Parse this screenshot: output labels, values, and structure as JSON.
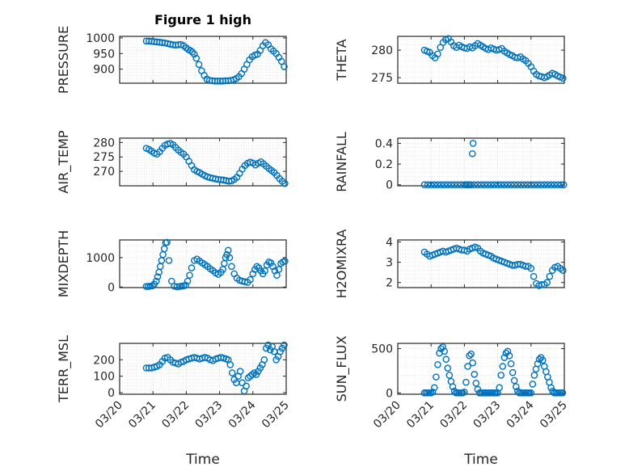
{
  "figure": {
    "title": "Figure 1 high",
    "xlabel": "Time"
  },
  "chart_data": [
    {
      "type": "scatter",
      "ylabel": "PRESSURE",
      "yticks": [
        900,
        950,
        1000
      ],
      "ylim": [
        855,
        1005
      ],
      "xlim": [
        0,
        5
      ],
      "xticks": [
        "03/20",
        "03/21",
        "03/22",
        "03/23",
        "03/24",
        "03/25"
      ],
      "grid": true,
      "color": "#0072BD",
      "x": [
        0.8,
        0.88,
        0.96,
        1.04,
        1.12,
        1.2,
        1.28,
        1.36,
        1.44,
        1.52,
        1.6,
        1.68,
        1.76,
        1.84,
        1.92,
        2.0,
        2.06,
        2.12,
        2.18,
        2.24,
        2.3,
        2.38,
        2.46,
        2.54,
        2.62,
        2.7,
        2.78,
        2.86,
        2.94,
        3.02,
        3.1,
        3.18,
        3.26,
        3.34,
        3.42,
        3.5,
        3.58,
        3.66,
        3.74,
        3.82,
        3.9,
        3.98,
        4.06,
        4.14,
        4.22,
        4.3,
        4.38,
        4.46,
        4.54,
        4.62,
        4.7,
        4.78,
        4.86,
        4.94
      ],
      "y": [
        990,
        990,
        989,
        988,
        987,
        986,
        985,
        984,
        982,
        980,
        978,
        977,
        978,
        979,
        975,
        968,
        963,
        960,
        955,
        948,
        935,
        915,
        895,
        880,
        868,
        864,
        863,
        862,
        862,
        862,
        862,
        863,
        863,
        864,
        866,
        870,
        876,
        886,
        900,
        915,
        930,
        940,
        945,
        948,
        960,
        975,
        985,
        978,
        965,
        958,
        950,
        938,
        925,
        908
      ]
    },
    {
      "type": "scatter",
      "ylabel": "THETA",
      "yticks": [
        275,
        280
      ],
      "ylim": [
        274,
        282.5
      ],
      "xlim": [
        0,
        5
      ],
      "xticks": [
        "03/20",
        "03/21",
        "03/22",
        "03/23",
        "03/24",
        "03/25"
      ],
      "grid": true,
      "color": "#0072BD",
      "x": [
        0.8,
        0.88,
        0.96,
        1.04,
        1.12,
        1.2,
        1.28,
        1.36,
        1.44,
        1.52,
        1.6,
        1.68,
        1.76,
        1.84,
        1.92,
        2.0,
        2.08,
        2.16,
        2.24,
        2.32,
        2.4,
        2.48,
        2.56,
        2.64,
        2.72,
        2.8,
        2.88,
        2.96,
        3.04,
        3.12,
        3.2,
        3.28,
        3.36,
        3.44,
        3.52,
        3.6,
        3.68,
        3.76,
        3.84,
        3.92,
        4.0,
        4.08,
        4.16,
        4.24,
        4.32,
        4.4,
        4.48,
        4.56,
        4.64,
        4.72,
        4.8,
        4.88,
        4.96
      ],
      "y": [
        280.0,
        279.8,
        279.6,
        279.0,
        278.6,
        279.3,
        280.5,
        281.4,
        281.9,
        282.1,
        281.5,
        280.8,
        280.5,
        280.9,
        280.6,
        280.4,
        280.3,
        280.6,
        280.4,
        280.8,
        281.2,
        280.9,
        280.6,
        280.3,
        280.1,
        280.4,
        280.2,
        280.0,
        280.1,
        280.3,
        279.8,
        279.5,
        279.2,
        279.0,
        278.7,
        278.6,
        278.8,
        278.4,
        278.1,
        277.6,
        277.0,
        276.2,
        275.6,
        275.3,
        275.2,
        275.0,
        275.2,
        275.5,
        275.8,
        275.6,
        275.3,
        275.1,
        274.9
      ]
    },
    {
      "type": "scatter",
      "ylabel": "AIR_TEMP",
      "yticks": [
        270,
        275,
        280
      ],
      "ylim": [
        265,
        281.5
      ],
      "xlim": [
        0,
        5
      ],
      "xticks": [
        "03/20",
        "03/21",
        "03/22",
        "03/23",
        "03/24",
        "03/25"
      ],
      "grid": true,
      "color": "#0072BD",
      "x": [
        0.8,
        0.88,
        0.96,
        1.04,
        1.12,
        1.2,
        1.28,
        1.36,
        1.44,
        1.52,
        1.6,
        1.68,
        1.76,
        1.84,
        1.92,
        2.0,
        2.08,
        2.16,
        2.24,
        2.32,
        2.4,
        2.48,
        2.56,
        2.64,
        2.72,
        2.8,
        2.88,
        2.96,
        3.04,
        3.12,
        3.2,
        3.28,
        3.36,
        3.44,
        3.52,
        3.6,
        3.68,
        3.76,
        3.84,
        3.92,
        4.0,
        4.08,
        4.16,
        4.24,
        4.32,
        4.4,
        4.48,
        4.56,
        4.64,
        4.72,
        4.8,
        4.88,
        4.96
      ],
      "y": [
        278.0,
        277.6,
        277.0,
        276.3,
        276.0,
        276.8,
        278.0,
        279.0,
        279.5,
        279.7,
        279.2,
        278.3,
        277.4,
        276.6,
        276.0,
        275.0,
        273.5,
        272.0,
        270.6,
        270.0,
        269.6,
        269.0,
        268.5,
        268.1,
        267.8,
        267.6,
        267.4,
        267.2,
        267.1,
        267.0,
        266.8,
        266.6,
        266.7,
        267.2,
        268.0,
        269.3,
        270.8,
        272.0,
        272.8,
        273.2,
        272.9,
        272.2,
        272.8,
        273.3,
        272.6,
        271.8,
        271.0,
        270.3,
        269.6,
        268.6,
        267.5,
        266.6,
        265.8
      ]
    },
    {
      "type": "scatter",
      "ylabel": "RAINFALL",
      "yticks": [
        0,
        0.2,
        0.4
      ],
      "ylim": [
        -0.01,
        0.45
      ],
      "xlim": [
        0,
        5
      ],
      "xticks": [
        "03/20",
        "03/21",
        "03/22",
        "03/23",
        "03/24",
        "03/25"
      ],
      "grid": true,
      "color": "#0072BD",
      "x": [
        0.8,
        0.9,
        1.0,
        1.1,
        1.2,
        1.3,
        1.4,
        1.5,
        1.6,
        1.7,
        1.8,
        1.9,
        2.0,
        2.05,
        2.1,
        2.15,
        2.2,
        2.24,
        2.26,
        2.3,
        2.4,
        2.5,
        2.6,
        2.7,
        2.8,
        2.9,
        3.0,
        3.1,
        3.2,
        3.3,
        3.4,
        3.5,
        3.6,
        3.7,
        3.8,
        3.9,
        4.0,
        4.1,
        4.2,
        4.3,
        4.4,
        4.5,
        4.6,
        4.7,
        4.8,
        4.9,
        4.98
      ],
      "y": [
        0,
        0,
        0,
        0,
        0,
        0,
        0,
        0,
        0,
        0,
        0,
        0,
        0,
        0,
        0,
        0,
        0,
        0.3,
        0.4,
        0,
        0,
        0,
        0,
        0,
        0,
        0,
        0,
        0,
        0,
        0,
        0,
        0,
        0,
        0,
        0,
        0,
        0,
        0,
        0,
        0,
        0,
        0,
        0,
        0,
        0,
        0,
        0
      ]
    },
    {
      "type": "scatter",
      "ylabel": "MIXDEPTH",
      "yticks": [
        0,
        1000
      ],
      "ylim": [
        -20,
        1600
      ],
      "xlim": [
        0,
        5
      ],
      "xticks": [
        "03/20",
        "03/21",
        "03/22",
        "03/23",
        "03/24",
        "03/25"
      ],
      "grid": true,
      "color": "#0072BD",
      "x": [
        0.8,
        0.86,
        0.92,
        0.98,
        1.04,
        1.1,
        1.14,
        1.18,
        1.22,
        1.26,
        1.3,
        1.34,
        1.38,
        1.42,
        1.48,
        1.56,
        1.64,
        1.72,
        1.8,
        1.86,
        1.92,
        1.98,
        2.04,
        2.1,
        2.16,
        2.24,
        2.32,
        2.4,
        2.48,
        2.56,
        2.64,
        2.72,
        2.8,
        2.88,
        2.96,
        3.04,
        3.1,
        3.14,
        3.18,
        3.22,
        3.26,
        3.3,
        3.36,
        3.44,
        3.52,
        3.6,
        3.68,
        3.76,
        3.84,
        3.92,
        4.0,
        4.06,
        4.12,
        4.18,
        4.24,
        4.3,
        4.36,
        4.42,
        4.48,
        4.54,
        4.6,
        4.66,
        4.72,
        4.78,
        4.84,
        4.9,
        4.96
      ],
      "y": [
        20,
        20,
        30,
        40,
        100,
        200,
        350,
        500,
        700,
        900,
        1100,
        1300,
        1500,
        1520,
        900,
        200,
        30,
        10,
        20,
        30,
        40,
        60,
        200,
        400,
        650,
        900,
        950,
        880,
        820,
        760,
        700,
        620,
        560,
        480,
        430,
        500,
        600,
        800,
        1000,
        1100,
        1250,
        1000,
        700,
        450,
        300,
        230,
        200,
        180,
        160,
        250,
        450,
        600,
        700,
        650,
        550,
        450,
        550,
        750,
        850,
        820,
        700,
        550,
        400,
        600,
        800,
        850,
        880
      ]
    },
    {
      "type": "scatter",
      "ylabel": "H2OMIXRA",
      "yticks": [
        2,
        3,
        4
      ],
      "ylim": [
        1.75,
        4.1
      ],
      "xlim": [
        0,
        5
      ],
      "xticks": [
        "03/20",
        "03/21",
        "03/22",
        "03/23",
        "03/24",
        "03/25"
      ],
      "grid": true,
      "color": "#0072BD",
      "x": [
        0.8,
        0.88,
        0.96,
        1.04,
        1.12,
        1.2,
        1.28,
        1.36,
        1.44,
        1.52,
        1.6,
        1.68,
        1.76,
        1.84,
        1.92,
        2.0,
        2.08,
        2.16,
        2.24,
        2.32,
        2.4,
        2.48,
        2.56,
        2.64,
        2.72,
        2.8,
        2.88,
        2.96,
        3.04,
        3.12,
        3.2,
        3.28,
        3.36,
        3.44,
        3.52,
        3.6,
        3.68,
        3.76,
        3.84,
        3.92,
        4.0,
        4.08,
        4.16,
        4.24,
        4.32,
        4.4,
        4.48,
        4.56,
        4.64,
        4.72,
        4.8,
        4.88,
        4.96
      ],
      "y": [
        3.5,
        3.4,
        3.3,
        3.35,
        3.4,
        3.45,
        3.5,
        3.55,
        3.5,
        3.55,
        3.6,
        3.65,
        3.7,
        3.65,
        3.6,
        3.6,
        3.55,
        3.65,
        3.7,
        3.75,
        3.7,
        3.55,
        3.45,
        3.4,
        3.35,
        3.3,
        3.2,
        3.15,
        3.1,
        3.05,
        3.0,
        2.95,
        2.9,
        2.85,
        2.85,
        2.9,
        2.9,
        2.85,
        2.8,
        2.8,
        2.7,
        2.3,
        1.95,
        1.85,
        1.9,
        1.9,
        2.0,
        2.3,
        2.6,
        2.75,
        2.8,
        2.7,
        2.6
      ]
    },
    {
      "type": "scatter",
      "ylabel": "TERR_MSL",
      "yticks": [
        0,
        100,
        200
      ],
      "ylim": [
        -10,
        300
      ],
      "xlim": [
        0,
        5
      ],
      "xticks": [
        "03/20",
        "03/21",
        "03/22",
        "03/23",
        "03/24",
        "03/25"
      ],
      "grid": true,
      "color": "#0072BD",
      "x": [
        0.8,
        0.88,
        0.96,
        1.04,
        1.12,
        1.2,
        1.28,
        1.36,
        1.44,
        1.52,
        1.6,
        1.68,
        1.76,
        1.84,
        1.92,
        2.0,
        2.08,
        2.16,
        2.24,
        2.32,
        2.4,
        2.48,
        2.56,
        2.64,
        2.72,
        2.8,
        2.88,
        2.96,
        3.04,
        3.12,
        3.2,
        3.26,
        3.32,
        3.38,
        3.44,
        3.5,
        3.56,
        3.62,
        3.68,
        3.74,
        3.8,
        3.86,
        3.92,
        3.98,
        4.04,
        4.1,
        4.16,
        4.22,
        4.28,
        4.34,
        4.4,
        4.46,
        4.52,
        4.58,
        4.64,
        4.7,
        4.76,
        4.82,
        4.88,
        4.94
      ],
      "y": [
        150,
        150,
        150,
        155,
        160,
        170,
        190,
        210,
        215,
        200,
        185,
        180,
        175,
        185,
        190,
        200,
        205,
        210,
        215,
        210,
        205,
        210,
        215,
        210,
        200,
        195,
        205,
        210,
        215,
        210,
        205,
        200,
        170,
        120,
        80,
        60,
        100,
        130,
        60,
        10,
        40,
        90,
        100,
        110,
        120,
        110,
        130,
        150,
        170,
        200,
        270,
        290,
        260,
        280,
        250,
        200,
        220,
        250,
        270,
        290
      ]
    },
    {
      "type": "scatter",
      "ylabel": "SUN_FLUX",
      "yticks": [
        0,
        500
      ],
      "ylim": [
        -15,
        560
      ],
      "xlim": [
        0,
        5
      ],
      "xticks": [
        "03/20",
        "03/21",
        "03/22",
        "03/23",
        "03/24",
        "03/25"
      ],
      "grid": true,
      "color": "#0072BD",
      "x": [
        0.8,
        0.85,
        0.9,
        0.95,
        1.0,
        1.05,
        1.1,
        1.15,
        1.2,
        1.25,
        1.3,
        1.35,
        1.4,
        1.45,
        1.5,
        1.55,
        1.6,
        1.65,
        1.7,
        1.75,
        1.8,
        1.85,
        1.9,
        1.95,
        2.0,
        2.05,
        2.1,
        2.15,
        2.2,
        2.25,
        2.3,
        2.35,
        2.4,
        2.45,
        2.5,
        2.55,
        2.6,
        2.65,
        2.7,
        2.75,
        2.8,
        2.85,
        2.9,
        2.95,
        3.0,
        3.05,
        3.1,
        3.15,
        3.2,
        3.25,
        3.3,
        3.35,
        3.4,
        3.45,
        3.5,
        3.55,
        3.6,
        3.65,
        3.7,
        3.75,
        3.8,
        3.85,
        3.9,
        3.95,
        4.0,
        4.05,
        4.1,
        4.15,
        4.2,
        4.25,
        4.3,
        4.35,
        4.4,
        4.45,
        4.5,
        4.55,
        4.6,
        4.65,
        4.7,
        4.75,
        4.8,
        4.85,
        4.9,
        4.95
      ],
      "y": [
        0,
        0,
        0,
        0,
        0,
        10,
        60,
        180,
        320,
        450,
        500,
        520,
        470,
        380,
        280,
        200,
        130,
        70,
        20,
        0,
        0,
        0,
        0,
        0,
        10,
        120,
        300,
        420,
        440,
        340,
        210,
        110,
        40,
        0,
        0,
        0,
        0,
        0,
        0,
        0,
        0,
        0,
        0,
        0,
        0,
        60,
        200,
        300,
        400,
        450,
        470,
        420,
        330,
        230,
        140,
        70,
        20,
        0,
        0,
        0,
        0,
        0,
        0,
        0,
        0,
        100,
        200,
        270,
        330,
        380,
        400,
        370,
        300,
        240,
        180,
        120,
        60,
        20,
        0,
        0,
        0,
        0,
        0,
        0
      ]
    }
  ]
}
